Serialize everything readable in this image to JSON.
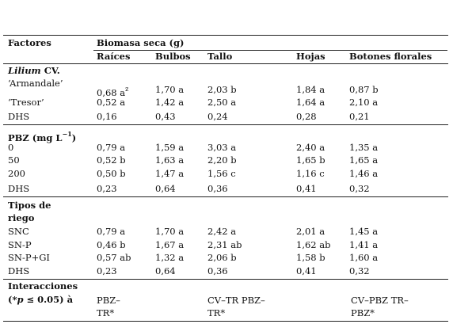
{
  "header": {
    "factor": "Factores",
    "group": "Biomasa seca (g)",
    "columns": [
      "Raíces",
      "Bulbos",
      "Tallo",
      "Hojas",
      "Botones florales"
    ]
  },
  "sections": [
    {
      "title": [
        {
          "text": "Lilium",
          "style": "bi"
        },
        {
          "text": " CV.",
          "style": "b"
        }
      ],
      "rows": [
        {
          "label": "‘Armandale’",
          "cells": [
            "0,68 a",
            "1,70 a",
            "2,03 b",
            "1,84 a",
            "0,87 b"
          ],
          "note": "z"
        },
        {
          "label": "‘Tresor’",
          "cells": [
            "0,52 a",
            "1,42 a",
            "2,50 a",
            "1,64 a",
            "2,10 a"
          ]
        },
        {
          "label": "DHS",
          "cells": [
            "0,16",
            "0,43",
            "0,24",
            "0,28",
            "0,21"
          ]
        }
      ]
    },
    {
      "title": [
        {
          "text": "PBZ (mg L",
          "style": "b"
        },
        {
          "text": "−1",
          "style": "bsup"
        },
        {
          "text": ")",
          "style": "b"
        }
      ],
      "rows": [
        {
          "label": "0",
          "cells": [
            "0,79 a",
            "1,59 a",
            "3,03 a",
            "2,40 a",
            "1,35 a"
          ]
        },
        {
          "label": "50",
          "cells": [
            "0,52 b",
            "1,63 a",
            "2,20 b",
            "1,65 b",
            "1,65 a"
          ]
        },
        {
          "label": "200",
          "cells": [
            "0,50 b",
            "1,47 a",
            "1,56 c",
            "1,16 c",
            "1,46 a"
          ]
        },
        {
          "label": "DHS",
          "cells": [
            "0,23",
            "0,64",
            "0,36",
            "0,41",
            "0,32"
          ]
        }
      ]
    },
    {
      "title": [
        {
          "text": "Tipos de",
          "style": "b"
        }
      ],
      "title2": "riego",
      "rows": [
        {
          "label": "SNC",
          "cells": [
            "0,79 a",
            "1,70 a",
            "2,42 a",
            "2,01 a",
            "1,45 a"
          ]
        },
        {
          "label": "SN-P",
          "cells": [
            "0,46 b",
            "1,67 a",
            "2,31 ab",
            "1,62 ab",
            "1,41 a"
          ]
        },
        {
          "label": "SN-P+GI",
          "cells": [
            "0,57 ab",
            "1,32 a",
            "2,06 b",
            "1,58 b",
            "1,60 a"
          ]
        },
        {
          "label": "DHS",
          "cells": [
            "0,23",
            "0,64",
            "0,36",
            "0,41",
            "0,32"
          ]
        }
      ]
    }
  ],
  "interactions": {
    "title": "Interacciones",
    "subtitle": [
      {
        "text": "(*",
        "style": "b"
      },
      {
        "text": "p",
        "style": "bi"
      },
      {
        "text": " ≤ 0.05) à",
        "style": "b"
      }
    ],
    "items": [
      [
        "PBZ–",
        "TR*"
      ],
      [
        "CV–TR PBZ–",
        "TR*"
      ],
      [
        "CV–PBZ TR–",
        "PBZ*"
      ]
    ]
  }
}
